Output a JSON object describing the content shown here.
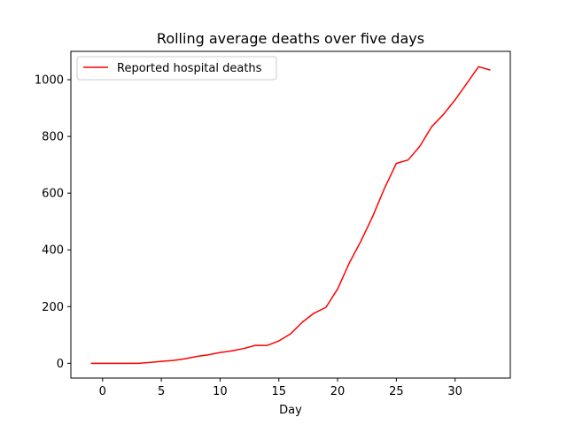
{
  "chart_data": {
    "type": "line",
    "title": "Rolling average deaths over five days",
    "xlabel": "Day",
    "ylabel": "",
    "xlim": [
      -2.7,
      34.7
    ],
    "ylim": [
      -52,
      1100
    ],
    "xticks": [
      0,
      5,
      10,
      15,
      20,
      25,
      30
    ],
    "yticks": [
      0,
      200,
      400,
      600,
      800,
      1000
    ],
    "grid": false,
    "legend_position": "top-left",
    "series": [
      {
        "name": "Reported hospital deaths",
        "color": "#ff0000",
        "x": [
          -1,
          0,
          1,
          2,
          3,
          4,
          5,
          6,
          7,
          8,
          9,
          10,
          11,
          12,
          13,
          14,
          15,
          16,
          17,
          18,
          19,
          20,
          21,
          22,
          23,
          24,
          25,
          26,
          27,
          28,
          29,
          30,
          31,
          32,
          33
        ],
        "y": [
          0,
          0,
          0,
          0,
          0,
          3,
          7,
          10,
          16,
          24,
          30,
          38,
          44,
          52,
          63,
          63,
          79,
          104,
          145,
          177,
          197,
          262,
          354,
          432,
          519,
          618,
          705,
          717,
          765,
          834,
          877,
          929,
          987,
          1046,
          1034
        ]
      }
    ]
  }
}
